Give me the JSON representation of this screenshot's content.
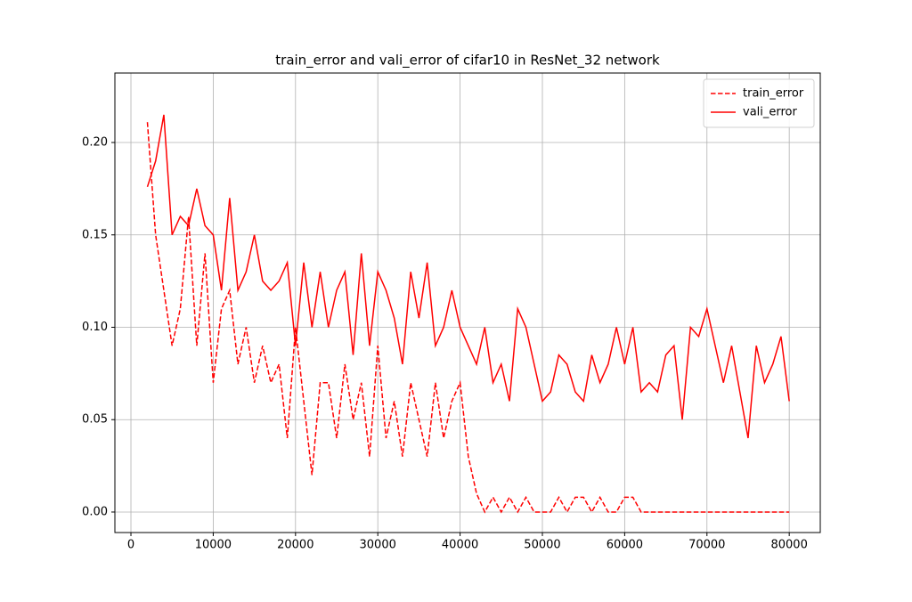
{
  "chart_data": {
    "type": "line",
    "title": "train_error and vali_error of cifar10 in ResNet_32 network",
    "x": [
      2000,
      3000,
      4000,
      5000,
      6000,
      7000,
      8000,
      9000,
      10000,
      11000,
      12000,
      13000,
      14000,
      15000,
      16000,
      17000,
      18000,
      19000,
      20000,
      21000,
      22000,
      23000,
      24000,
      25000,
      26000,
      27000,
      28000,
      29000,
      30000,
      31000,
      32000,
      33000,
      34000,
      35000,
      36000,
      37000,
      38000,
      39000,
      40000,
      41000,
      42000,
      43000,
      44000,
      45000,
      46000,
      47000,
      48000,
      49000,
      50000,
      51000,
      52000,
      53000,
      54000,
      55000,
      56000,
      57000,
      58000,
      59000,
      60000,
      61000,
      62000,
      63000,
      64000,
      65000,
      66000,
      67000,
      68000,
      69000,
      70000,
      71000,
      72000,
      73000,
      74000,
      75000,
      76000,
      77000,
      78000,
      79000,
      80000
    ],
    "series": [
      {
        "name": "train_error",
        "color": "#ff0000",
        "linestyle": "dashed",
        "values": [
          0.211,
          0.15,
          0.12,
          0.09,
          0.11,
          0.16,
          0.09,
          0.14,
          0.07,
          0.11,
          0.12,
          0.08,
          0.1,
          0.07,
          0.09,
          0.07,
          0.08,
          0.04,
          0.1,
          0.06,
          0.02,
          0.07,
          0.07,
          0.04,
          0.08,
          0.05,
          0.07,
          0.03,
          0.09,
          0.04,
          0.06,
          0.03,
          0.07,
          0.05,
          0.03,
          0.07,
          0.04,
          0.06,
          0.07,
          0.03,
          0.01,
          0,
          0.008,
          0,
          0.008,
          0,
          0.008,
          0,
          0,
          0,
          0.008,
          0,
          0.008,
          0.008,
          0,
          0.008,
          0,
          0,
          0.008,
          0.008,
          0,
          0,
          0,
          0,
          0,
          0,
          0,
          0,
          0,
          0,
          0,
          0,
          0,
          0,
          0,
          0,
          0,
          0,
          0
        ]
      },
      {
        "name": "vali_error",
        "color": "#ff0000",
        "linestyle": "solid",
        "values": [
          0.176,
          0.19,
          0.215,
          0.15,
          0.16,
          0.155,
          0.175,
          0.155,
          0.15,
          0.12,
          0.17,
          0.12,
          0.13,
          0.15,
          0.125,
          0.12,
          0.125,
          0.135,
          0.09,
          0.135,
          0.1,
          0.13,
          0.1,
          0.12,
          0.13,
          0.085,
          0.14,
          0.09,
          0.13,
          0.12,
          0.105,
          0.08,
          0.13,
          0.105,
          0.135,
          0.09,
          0.1,
          0.12,
          0.1,
          0.09,
          0.08,
          0.1,
          0.07,
          0.08,
          0.06,
          0.11,
          0.1,
          0.08,
          0.06,
          0.065,
          0.085,
          0.08,
          0.065,
          0.06,
          0.085,
          0.07,
          0.08,
          0.1,
          0.08,
          0.1,
          0.065,
          0.07,
          0.065,
          0.085,
          0.09,
          0.05,
          0.1,
          0.095,
          0.11,
          0.09,
          0.07,
          0.09,
          0.065,
          0.04,
          0.09,
          0.07,
          0.08,
          0.095,
          0.06
        ]
      }
    ],
    "xlim": [
      -1950,
      83770
    ],
    "ylim": [
      -0.0111,
      0.2376
    ],
    "xticks": [
      0,
      10000,
      20000,
      30000,
      40000,
      50000,
      60000,
      70000,
      80000
    ],
    "yticks": [
      {
        "value": 0,
        "label": "0.00"
      },
      0.05,
      {
        "value": 0.1,
        "label": "0.10"
      },
      0.15,
      {
        "value": 0.2,
        "label": "0.20"
      }
    ],
    "grid": true,
    "legend": "upper right"
  }
}
